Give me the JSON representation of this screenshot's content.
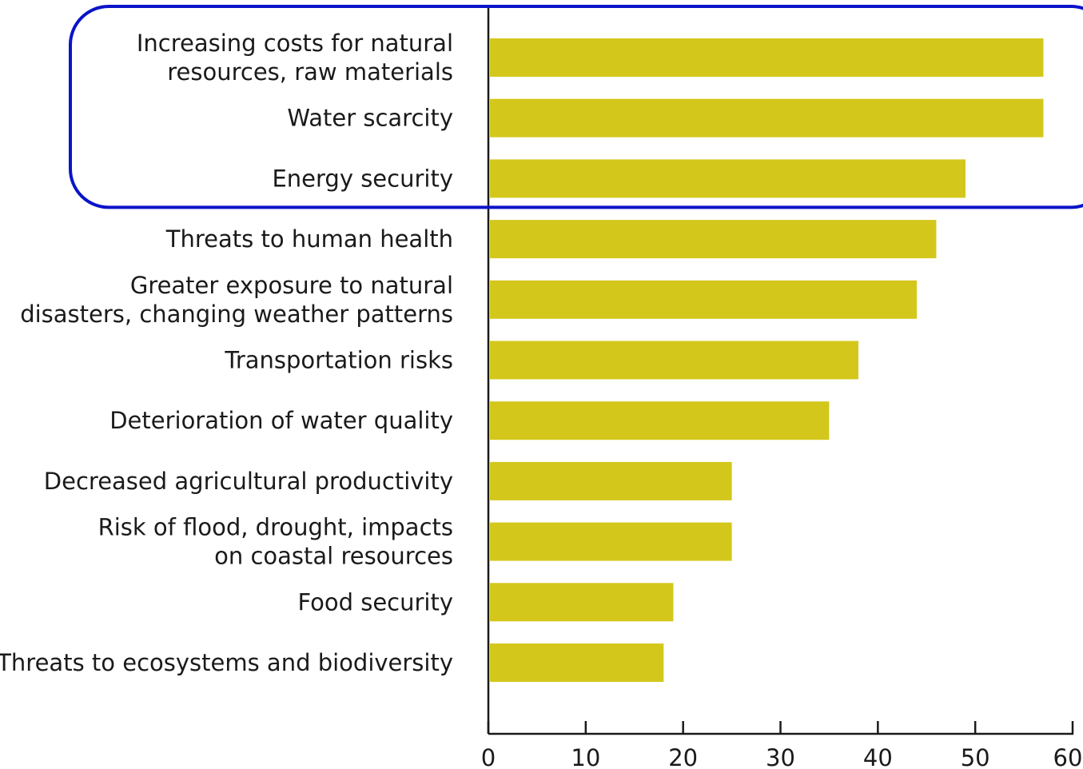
{
  "chart_data": {
    "type": "bar",
    "orientation": "horizontal",
    "categories": [
      [
        "Increasing costs for natural",
        "resources, raw materials"
      ],
      [
        "Water scarcity"
      ],
      [
        "Energy security"
      ],
      [
        "Threats to human health"
      ],
      [
        "Greater exposure to natural",
        "disasters, changing weather patterns"
      ],
      [
        "Transportation risks"
      ],
      [
        "Deterioration of water quality"
      ],
      [
        "Decreased agricultural productivity"
      ],
      [
        "Risk of flood, drought, impacts",
        "on coastal resources"
      ],
      [
        "Food security"
      ],
      [
        "Threats to ecosystems and biodiversity"
      ]
    ],
    "values": [
      57,
      57,
      49,
      46,
      44,
      38,
      35,
      25,
      25,
      19,
      18
    ],
    "xticks": [
      "0",
      "10",
      "20",
      "30",
      "40",
      "50",
      "60"
    ],
    "xlim": [
      0,
      60
    ],
    "title": "",
    "xlabel": "",
    "ylabel": "",
    "grid": false,
    "bar_color": "#d4c71c",
    "highlight": {
      "categories_from": 0,
      "categories_to": 2,
      "color": "#0a14c8"
    }
  }
}
